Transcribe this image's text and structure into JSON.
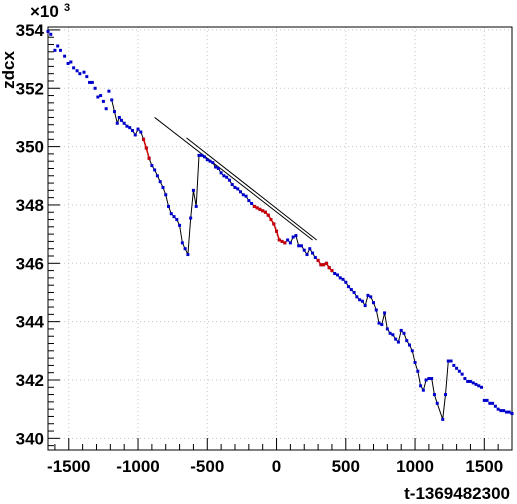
{
  "chart_data": {
    "type": "scatter",
    "xlabel": "t-1369482300",
    "ylabel": "zdcx",
    "y_multiplier": "×10",
    "y_multiplier_exp": "3",
    "xlim": [
      -1650,
      1700
    ],
    "ylim": [
      339.6,
      354.1
    ],
    "xticks": [
      -1500,
      -1000,
      -500,
      0,
      500,
      1000,
      1500
    ],
    "xtick_labels": [
      "-1500",
      "-1000",
      "-500",
      "0",
      "500",
      "1000",
      "1500"
    ],
    "yticks": [
      340,
      342,
      344,
      346,
      348,
      350,
      352,
      354
    ],
    "ytick_labels": [
      "340",
      "342",
      "344",
      "346",
      "348",
      "350",
      "352",
      "354"
    ],
    "grid": true,
    "colors": {
      "primary": "#0000cc",
      "highlight": "#cc0000",
      "line": "#000000",
      "grid": "#c8c8c8"
    },
    "series": [
      {
        "values": [
          [
            -1650,
            353.95
          ],
          [
            -1630,
            353.85
          ],
          [
            -1600,
            353.3
          ],
          [
            -1580,
            353.45
          ],
          [
            -1560,
            353.3
          ],
          [
            -1530,
            353.1
          ],
          [
            -1505,
            352.85
          ],
          [
            -1485,
            352.9
          ],
          [
            -1465,
            352.7
          ],
          [
            -1440,
            352.6
          ],
          [
            -1420,
            352.5
          ],
          [
            -1390,
            352.55
          ],
          [
            -1370,
            352.4
          ],
          [
            -1350,
            352.2
          ],
          [
            -1330,
            352.2
          ],
          [
            -1310,
            352.0
          ],
          [
            -1290,
            351.7
          ],
          [
            -1270,
            351.75
          ],
          [
            -1250,
            351.55
          ],
          [
            -1230,
            351.3
          ],
          [
            -1210,
            351.9
          ],
          [
            -1190,
            351.6
          ],
          [
            -1170,
            351.2
          ],
          [
            -1150,
            350.8
          ],
          [
            -1135,
            351.0
          ],
          [
            -1120,
            350.9
          ],
          [
            -1100,
            350.8
          ],
          [
            -1080,
            350.7
          ],
          [
            -1060,
            350.65
          ],
          [
            -1040,
            350.55
          ],
          [
            -1020,
            350.4
          ],
          [
            -1000,
            350.6
          ],
          [
            -980,
            350.5
          ],
          [
            -960,
            350.25
          ],
          [
            -940,
            349.95
          ],
          [
            -920,
            349.6
          ],
          [
            -900,
            349.35
          ],
          [
            -880,
            349.2
          ],
          [
            -860,
            349.0
          ],
          [
            -840,
            348.8
          ],
          [
            -820,
            348.6
          ],
          [
            -800,
            348.35
          ],
          [
            -780,
            347.95
          ],
          [
            -760,
            347.7
          ],
          [
            -740,
            347.6
          ],
          [
            -720,
            347.5
          ],
          [
            -700,
            347.3
          ],
          [
            -680,
            346.7
          ],
          [
            -660,
            346.5
          ],
          [
            -640,
            346.3
          ],
          [
            -620,
            347.55
          ],
          [
            -600,
            348.5
          ],
          [
            -580,
            347.95
          ],
          [
            -560,
            349.7
          ],
          [
            -540,
            349.7
          ],
          [
            -520,
            349.65
          ],
          [
            -500,
            349.55
          ],
          [
            -480,
            349.5
          ],
          [
            -460,
            349.45
          ],
          [
            -440,
            349.3
          ],
          [
            -420,
            349.25
          ],
          [
            -400,
            349.1
          ],
          [
            -380,
            349.0
          ],
          [
            -360,
            348.95
          ],
          [
            -340,
            348.85
          ],
          [
            -320,
            348.7
          ],
          [
            -300,
            348.6
          ],
          [
            -280,
            348.55
          ],
          [
            -260,
            348.45
          ],
          [
            -240,
            348.35
          ],
          [
            -220,
            348.3
          ],
          [
            -200,
            348.15
          ],
          [
            -180,
            348.05
          ],
          [
            -160,
            347.95
          ],
          [
            -140,
            347.9
          ],
          [
            -120,
            347.85
          ],
          [
            -100,
            347.8
          ],
          [
            -80,
            347.75
          ],
          [
            -60,
            347.65
          ],
          [
            -40,
            347.5
          ],
          [
            -20,
            347.35
          ],
          [
            0,
            347.1
          ],
          [
            20,
            346.8
          ],
          [
            40,
            346.75
          ],
          [
            60,
            346.7
          ],
          [
            80,
            346.8
          ],
          [
            100,
            346.7
          ],
          [
            120,
            346.9
          ],
          [
            140,
            346.95
          ],
          [
            160,
            346.6
          ],
          [
            180,
            346.6
          ],
          [
            200,
            346.45
          ],
          [
            220,
            346.3
          ],
          [
            240,
            346.5
          ],
          [
            260,
            346.35
          ],
          [
            280,
            346.2
          ],
          [
            300,
            346.1
          ],
          [
            320,
            345.95
          ],
          [
            340,
            345.95
          ],
          [
            360,
            346.0
          ],
          [
            380,
            345.85
          ],
          [
            400,
            345.75
          ],
          [
            420,
            345.65
          ],
          [
            440,
            345.6
          ],
          [
            460,
            345.5
          ],
          [
            480,
            345.45
          ],
          [
            500,
            345.35
          ],
          [
            520,
            345.2
          ],
          [
            540,
            345.1
          ],
          [
            560,
            345.0
          ],
          [
            580,
            344.85
          ],
          [
            600,
            344.75
          ],
          [
            620,
            344.7
          ],
          [
            640,
            344.55
          ],
          [
            660,
            344.9
          ],
          [
            680,
            344.85
          ],
          [
            700,
            344.65
          ],
          [
            720,
            344.4
          ],
          [
            740,
            343.95
          ],
          [
            760,
            343.9
          ],
          [
            780,
            344.3
          ],
          [
            800,
            343.75
          ],
          [
            820,
            343.6
          ],
          [
            840,
            343.55
          ],
          [
            860,
            343.4
          ],
          [
            880,
            343.3
          ],
          [
            900,
            343.7
          ],
          [
            920,
            343.6
          ],
          [
            940,
            343.35
          ],
          [
            960,
            343.2
          ],
          [
            980,
            343.0
          ],
          [
            1000,
            342.6
          ],
          [
            1020,
            342.3
          ],
          [
            1040,
            341.8
          ],
          [
            1060,
            341.65
          ],
          [
            1080,
            342.0
          ],
          [
            1100,
            342.05
          ],
          [
            1120,
            342.05
          ],
          [
            1140,
            341.5
          ],
          [
            1160,
            341.2
          ],
          [
            1200,
            340.65
          ],
          [
            1220,
            341.5
          ],
          [
            1240,
            342.65
          ],
          [
            1260,
            342.65
          ],
          [
            1280,
            342.5
          ],
          [
            1300,
            342.4
          ],
          [
            1320,
            342.3
          ],
          [
            1340,
            342.2
          ],
          [
            1360,
            342.05
          ],
          [
            1380,
            341.95
          ],
          [
            1400,
            341.95
          ],
          [
            1420,
            341.9
          ],
          [
            1440,
            341.85
          ],
          [
            1460,
            341.8
          ],
          [
            1480,
            341.75
          ],
          [
            1500,
            341.3
          ],
          [
            1520,
            341.3
          ],
          [
            1540,
            341.2
          ],
          [
            1560,
            341.2
          ],
          [
            1580,
            341.1
          ],
          [
            1600,
            341.0
          ],
          [
            1620,
            340.95
          ],
          [
            1640,
            340.95
          ],
          [
            1660,
            340.9
          ],
          [
            1680,
            340.9
          ],
          [
            1700,
            340.85
          ]
        ],
        "connected_range": [
          -1200,
          1250
        ]
      },
      {
        "values": [
          [
            -960,
            350.25
          ],
          [
            -940,
            349.95
          ],
          [
            -920,
            349.6
          ],
          [
            -160,
            347.95
          ],
          [
            -140,
            347.9
          ],
          [
            -120,
            347.85
          ],
          [
            -100,
            347.8
          ],
          [
            -80,
            347.75
          ],
          [
            -60,
            347.65
          ],
          [
            -40,
            347.5
          ],
          [
            -20,
            347.35
          ],
          [
            0,
            347.1
          ],
          [
            20,
            346.8
          ],
          [
            40,
            346.75
          ],
          [
            60,
            346.7
          ],
          [
            300,
            346.1
          ],
          [
            320,
            345.95
          ],
          [
            340,
            345.95
          ],
          [
            360,
            346.0
          ],
          [
            380,
            345.85
          ],
          [
            400,
            345.75
          ]
        ]
      }
    ],
    "fit_lines": [
      {
        "x": [
          -880,
          260
        ],
        "y": [
          351.0,
          346.8
        ]
      },
      {
        "x": [
          -650,
          290
        ],
        "y": [
          350.3,
          346.8
        ]
      }
    ]
  }
}
